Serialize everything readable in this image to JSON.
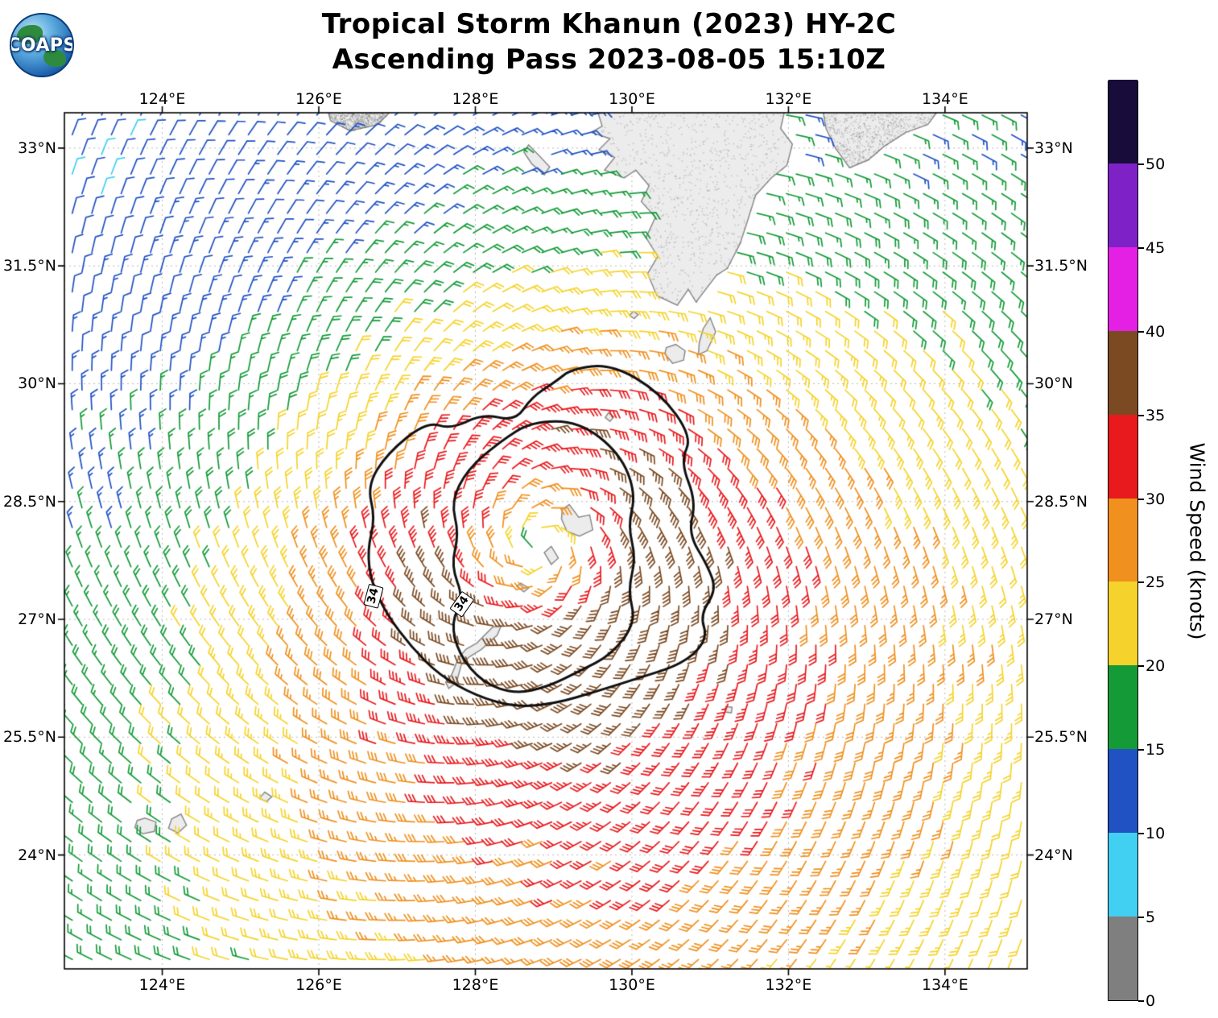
{
  "header": {
    "title_line1": "Tropical Storm Khanun (2023) HY-2C",
    "title_line2": "Ascending Pass 2023-08-05 15:10Z"
  },
  "logo": {
    "text": "COAPS"
  },
  "colorbar": {
    "title": "Wind Speed (knots)",
    "tick_values": [
      0,
      5,
      10,
      15,
      20,
      25,
      30,
      35,
      40,
      45,
      50
    ],
    "segments": [
      {
        "min": 0,
        "max": 5,
        "color": "#7f7f7f"
      },
      {
        "min": 5,
        "max": 10,
        "color": "#41cff2"
      },
      {
        "min": 10,
        "max": 15,
        "color": "#2052c4"
      },
      {
        "min": 15,
        "max": 20,
        "color": "#149b38"
      },
      {
        "min": 20,
        "max": 25,
        "color": "#f5d32c"
      },
      {
        "min": 25,
        "max": 30,
        "color": "#f0901e"
      },
      {
        "min": 30,
        "max": 35,
        "color": "#e81a1d"
      },
      {
        "min": 35,
        "max": 40,
        "color": "#7c4a22"
      },
      {
        "min": 40,
        "max": 45,
        "color": "#e520e5"
      },
      {
        "min": 45,
        "max": 50,
        "color": "#7e22c8"
      },
      {
        "min": 50,
        "max": 55,
        "color": "#170c3a"
      }
    ]
  },
  "chart_data": {
    "type": "wind-barb-map",
    "title": "Tropical Storm Khanun (2023) HY-2C — Ascending Pass 2023-08-05 15:10Z",
    "map": {
      "lon_min": 122.75,
      "lon_max": 135.05,
      "lat_min": 22.55,
      "lat_max": 33.45
    },
    "grid": "dashed",
    "x_ticks": [
      {
        "value": 124,
        "label": "124°E"
      },
      {
        "value": 126,
        "label": "126°E"
      },
      {
        "value": 128,
        "label": "128°E"
      },
      {
        "value": 130,
        "label": "130°E"
      },
      {
        "value": 132,
        "label": "132°E"
      },
      {
        "value": 134,
        "label": "134°E"
      }
    ],
    "y_ticks": [
      {
        "value": 24,
        "label": "24°N"
      },
      {
        "value": 25.5,
        "label": "25.5°N"
      },
      {
        "value": 27,
        "label": "27°N"
      },
      {
        "value": 28.5,
        "label": "28.5°N"
      },
      {
        "value": 30,
        "label": "30°N"
      },
      {
        "value": 31.5,
        "label": "31.5°N"
      },
      {
        "value": 33,
        "label": "33°N"
      }
    ],
    "barb_grid_deg": 0.25,
    "storm": {
      "name": "Khanun",
      "center_lon": 128.8,
      "center_lat": 27.95,
      "profile_radii_deg": [
        0,
        0.5,
        1,
        1.5,
        2,
        2.5,
        3,
        4,
        5,
        6,
        7,
        8,
        10
      ],
      "profile_speeds_kt": [
        18,
        27,
        34,
        38,
        35,
        31,
        28,
        24,
        21,
        19,
        17,
        16,
        14
      ],
      "asym_amplitude": 0.38,
      "asym_direction_deg": -60,
      "inflow_deg": 20,
      "speed_cap_kt": 39.5
    },
    "contours": [
      {
        "level": 34,
        "label": "34",
        "label_pos": [
          126.7,
          27.3
        ],
        "label_rot_deg": -75,
        "points": [
          [
            129.23,
            30.19
          ],
          [
            129.74,
            30.25
          ],
          [
            130.36,
            29.89
          ],
          [
            130.77,
            29.32
          ],
          [
            130.62,
            29.01
          ],
          [
            130.82,
            28.5
          ],
          [
            130.72,
            28.09
          ],
          [
            130.97,
            27.68
          ],
          [
            131.08,
            27.37
          ],
          [
            130.87,
            27.06
          ],
          [
            130.97,
            26.75
          ],
          [
            130.67,
            26.44
          ],
          [
            130.05,
            26.24
          ],
          [
            129.54,
            26.08
          ],
          [
            129.03,
            25.93
          ],
          [
            128.51,
            25.88
          ],
          [
            128.0,
            26.03
          ],
          [
            127.54,
            26.29
          ],
          [
            127.18,
            26.65
          ],
          [
            126.87,
            27.06
          ],
          [
            126.67,
            27.47
          ],
          [
            126.62,
            27.88
          ],
          [
            126.72,
            28.29
          ],
          [
            126.62,
            28.7
          ],
          [
            126.87,
            29.11
          ],
          [
            127.38,
            29.52
          ],
          [
            127.69,
            29.42
          ],
          [
            128.1,
            29.62
          ],
          [
            128.51,
            29.52
          ],
          [
            128.72,
            29.83
          ],
          [
            129.03,
            30.03
          ]
        ]
      },
      {
        "level": 34,
        "label": "34",
        "label_pos": [
          127.83,
          27.2
        ],
        "label_rot_deg": -55,
        "points": [
          [
            128.72,
            29.52
          ],
          [
            129.33,
            29.52
          ],
          [
            129.85,
            29.11
          ],
          [
            130.05,
            28.6
          ],
          [
            129.95,
            28.19
          ],
          [
            130.05,
            27.78
          ],
          [
            129.95,
            27.37
          ],
          [
            130.05,
            26.96
          ],
          [
            129.74,
            26.55
          ],
          [
            129.33,
            26.34
          ],
          [
            128.92,
            26.14
          ],
          [
            128.51,
            26.05
          ],
          [
            128.1,
            26.19
          ],
          [
            127.79,
            26.55
          ],
          [
            127.69,
            26.96
          ],
          [
            127.85,
            27.27
          ],
          [
            127.69,
            27.68
          ],
          [
            127.79,
            28.09
          ],
          [
            127.69,
            28.5
          ],
          [
            127.9,
            28.91
          ],
          [
            128.31,
            29.26
          ]
        ]
      }
    ],
    "coastlines": [
      {
        "name": "kyushu",
        "speckle": true,
        "points": [
          [
            129.52,
            33.6
          ],
          [
            129.62,
            33.28
          ],
          [
            129.48,
            33.2
          ],
          [
            129.72,
            33.12
          ],
          [
            129.58,
            32.98
          ],
          [
            129.78,
            32.88
          ],
          [
            129.65,
            32.72
          ],
          [
            129.9,
            32.62
          ],
          [
            130.05,
            32.72
          ],
          [
            130.22,
            32.52
          ],
          [
            130.12,
            32.32
          ],
          [
            130.3,
            32.12
          ],
          [
            130.18,
            31.86
          ],
          [
            130.33,
            31.62
          ],
          [
            130.2,
            31.4
          ],
          [
            130.32,
            31.12
          ],
          [
            130.58,
            31.0
          ],
          [
            130.72,
            31.2
          ],
          [
            130.82,
            31.04
          ],
          [
            131.08,
            31.38
          ],
          [
            131.22,
            31.47
          ],
          [
            131.38,
            31.78
          ],
          [
            131.47,
            32.05
          ],
          [
            131.58,
            32.4
          ],
          [
            131.78,
            32.62
          ],
          [
            131.98,
            32.78
          ],
          [
            132.05,
            33.05
          ],
          [
            131.9,
            33.25
          ],
          [
            131.98,
            33.6
          ]
        ]
      },
      {
        "name": "shikoku",
        "speckle": true,
        "points": [
          [
            132.42,
            33.6
          ],
          [
            132.48,
            33.25
          ],
          [
            132.6,
            33.0
          ],
          [
            132.78,
            32.75
          ],
          [
            133.02,
            32.85
          ],
          [
            133.22,
            33.02
          ],
          [
            133.5,
            33.2
          ],
          [
            133.78,
            33.3
          ],
          [
            134.0,
            33.6
          ]
        ]
      },
      {
        "name": "jeju",
        "speckle": true,
        "points": [
          [
            126.08,
            33.6
          ],
          [
            126.15,
            33.35
          ],
          [
            126.4,
            33.22
          ],
          [
            126.75,
            33.3
          ],
          [
            126.9,
            33.45
          ],
          [
            126.95,
            33.6
          ]
        ]
      },
      {
        "name": "goto-islands",
        "speckle": false,
        "points": [
          [
            128.62,
            32.95
          ],
          [
            128.72,
            32.8
          ],
          [
            128.88,
            32.66
          ],
          [
            128.95,
            32.76
          ],
          [
            128.8,
            32.92
          ],
          [
            128.68,
            33.04
          ]
        ]
      },
      {
        "name": "yakushima",
        "speckle": false,
        "points": [
          [
            130.42,
            30.38
          ],
          [
            130.52,
            30.26
          ],
          [
            130.66,
            30.3
          ],
          [
            130.68,
            30.42
          ],
          [
            130.56,
            30.5
          ],
          [
            130.44,
            30.46
          ]
        ]
      },
      {
        "name": "tanegashima",
        "speckle": false,
        "points": [
          [
            130.85,
            30.37
          ],
          [
            130.96,
            30.42
          ],
          [
            131.07,
            30.66
          ],
          [
            131.0,
            30.84
          ],
          [
            130.91,
            30.7
          ],
          [
            130.86,
            30.52
          ]
        ]
      },
      {
        "name": "kusagaki",
        "speckle": false,
        "points": [
          [
            129.97,
            30.87
          ],
          [
            130.03,
            30.83
          ],
          [
            130.08,
            30.88
          ],
          [
            130.02,
            30.92
          ]
        ]
      },
      {
        "name": "tokara",
        "speckle": false,
        "points": [
          [
            129.66,
            29.57
          ],
          [
            129.72,
            29.52
          ],
          [
            129.77,
            29.58
          ],
          [
            129.7,
            29.63
          ]
        ]
      },
      {
        "name": "amami-oshima",
        "speckle": false,
        "points": [
          [
            129.1,
            28.28
          ],
          [
            129.17,
            28.12
          ],
          [
            129.33,
            28.06
          ],
          [
            129.5,
            28.14
          ],
          [
            129.46,
            28.33
          ],
          [
            129.32,
            28.3
          ],
          [
            129.2,
            28.46
          ],
          [
            129.11,
            28.4
          ]
        ]
      },
      {
        "name": "tokunoshima",
        "speckle": false,
        "points": [
          [
            128.88,
            27.85
          ],
          [
            128.97,
            27.7
          ],
          [
            129.06,
            27.78
          ],
          [
            128.97,
            27.93
          ]
        ]
      },
      {
        "name": "okinoerabu",
        "speckle": false,
        "points": [
          [
            128.53,
            27.42
          ],
          [
            128.62,
            27.35
          ],
          [
            128.68,
            27.4
          ],
          [
            128.58,
            27.46
          ]
        ]
      },
      {
        "name": "okinawa",
        "speckle": false,
        "points": [
          [
            127.66,
            26.12
          ],
          [
            127.76,
            26.2
          ],
          [
            127.82,
            26.42
          ],
          [
            127.92,
            26.52
          ],
          [
            128.08,
            26.62
          ],
          [
            128.28,
            26.8
          ],
          [
            128.33,
            26.92
          ],
          [
            128.22,
            26.9
          ],
          [
            128.02,
            26.7
          ],
          [
            127.88,
            26.62
          ],
          [
            127.78,
            26.5
          ],
          [
            127.7,
            26.3
          ],
          [
            127.62,
            26.2
          ]
        ]
      },
      {
        "name": "daito-islands",
        "speckle": false,
        "points": [
          [
            131.19,
            25.82
          ],
          [
            131.27,
            25.81
          ],
          [
            131.28,
            25.88
          ],
          [
            131.2,
            25.89
          ]
        ]
      },
      {
        "name": "miyako",
        "speckle": false,
        "points": [
          [
            125.24,
            24.72
          ],
          [
            125.33,
            24.68
          ],
          [
            125.4,
            24.74
          ],
          [
            125.31,
            24.8
          ]
        ]
      },
      {
        "name": "iriomote",
        "speckle": false,
        "points": [
          [
            123.65,
            24.35
          ],
          [
            123.75,
            24.27
          ],
          [
            123.9,
            24.3
          ],
          [
            123.92,
            24.42
          ],
          [
            123.78,
            24.47
          ],
          [
            123.68,
            24.44
          ]
        ]
      },
      {
        "name": "ishigaki",
        "speckle": false,
        "points": [
          [
            124.08,
            24.34
          ],
          [
            124.2,
            24.28
          ],
          [
            124.31,
            24.38
          ],
          [
            124.24,
            24.52
          ],
          [
            124.12,
            24.46
          ]
        ]
      }
    ]
  }
}
